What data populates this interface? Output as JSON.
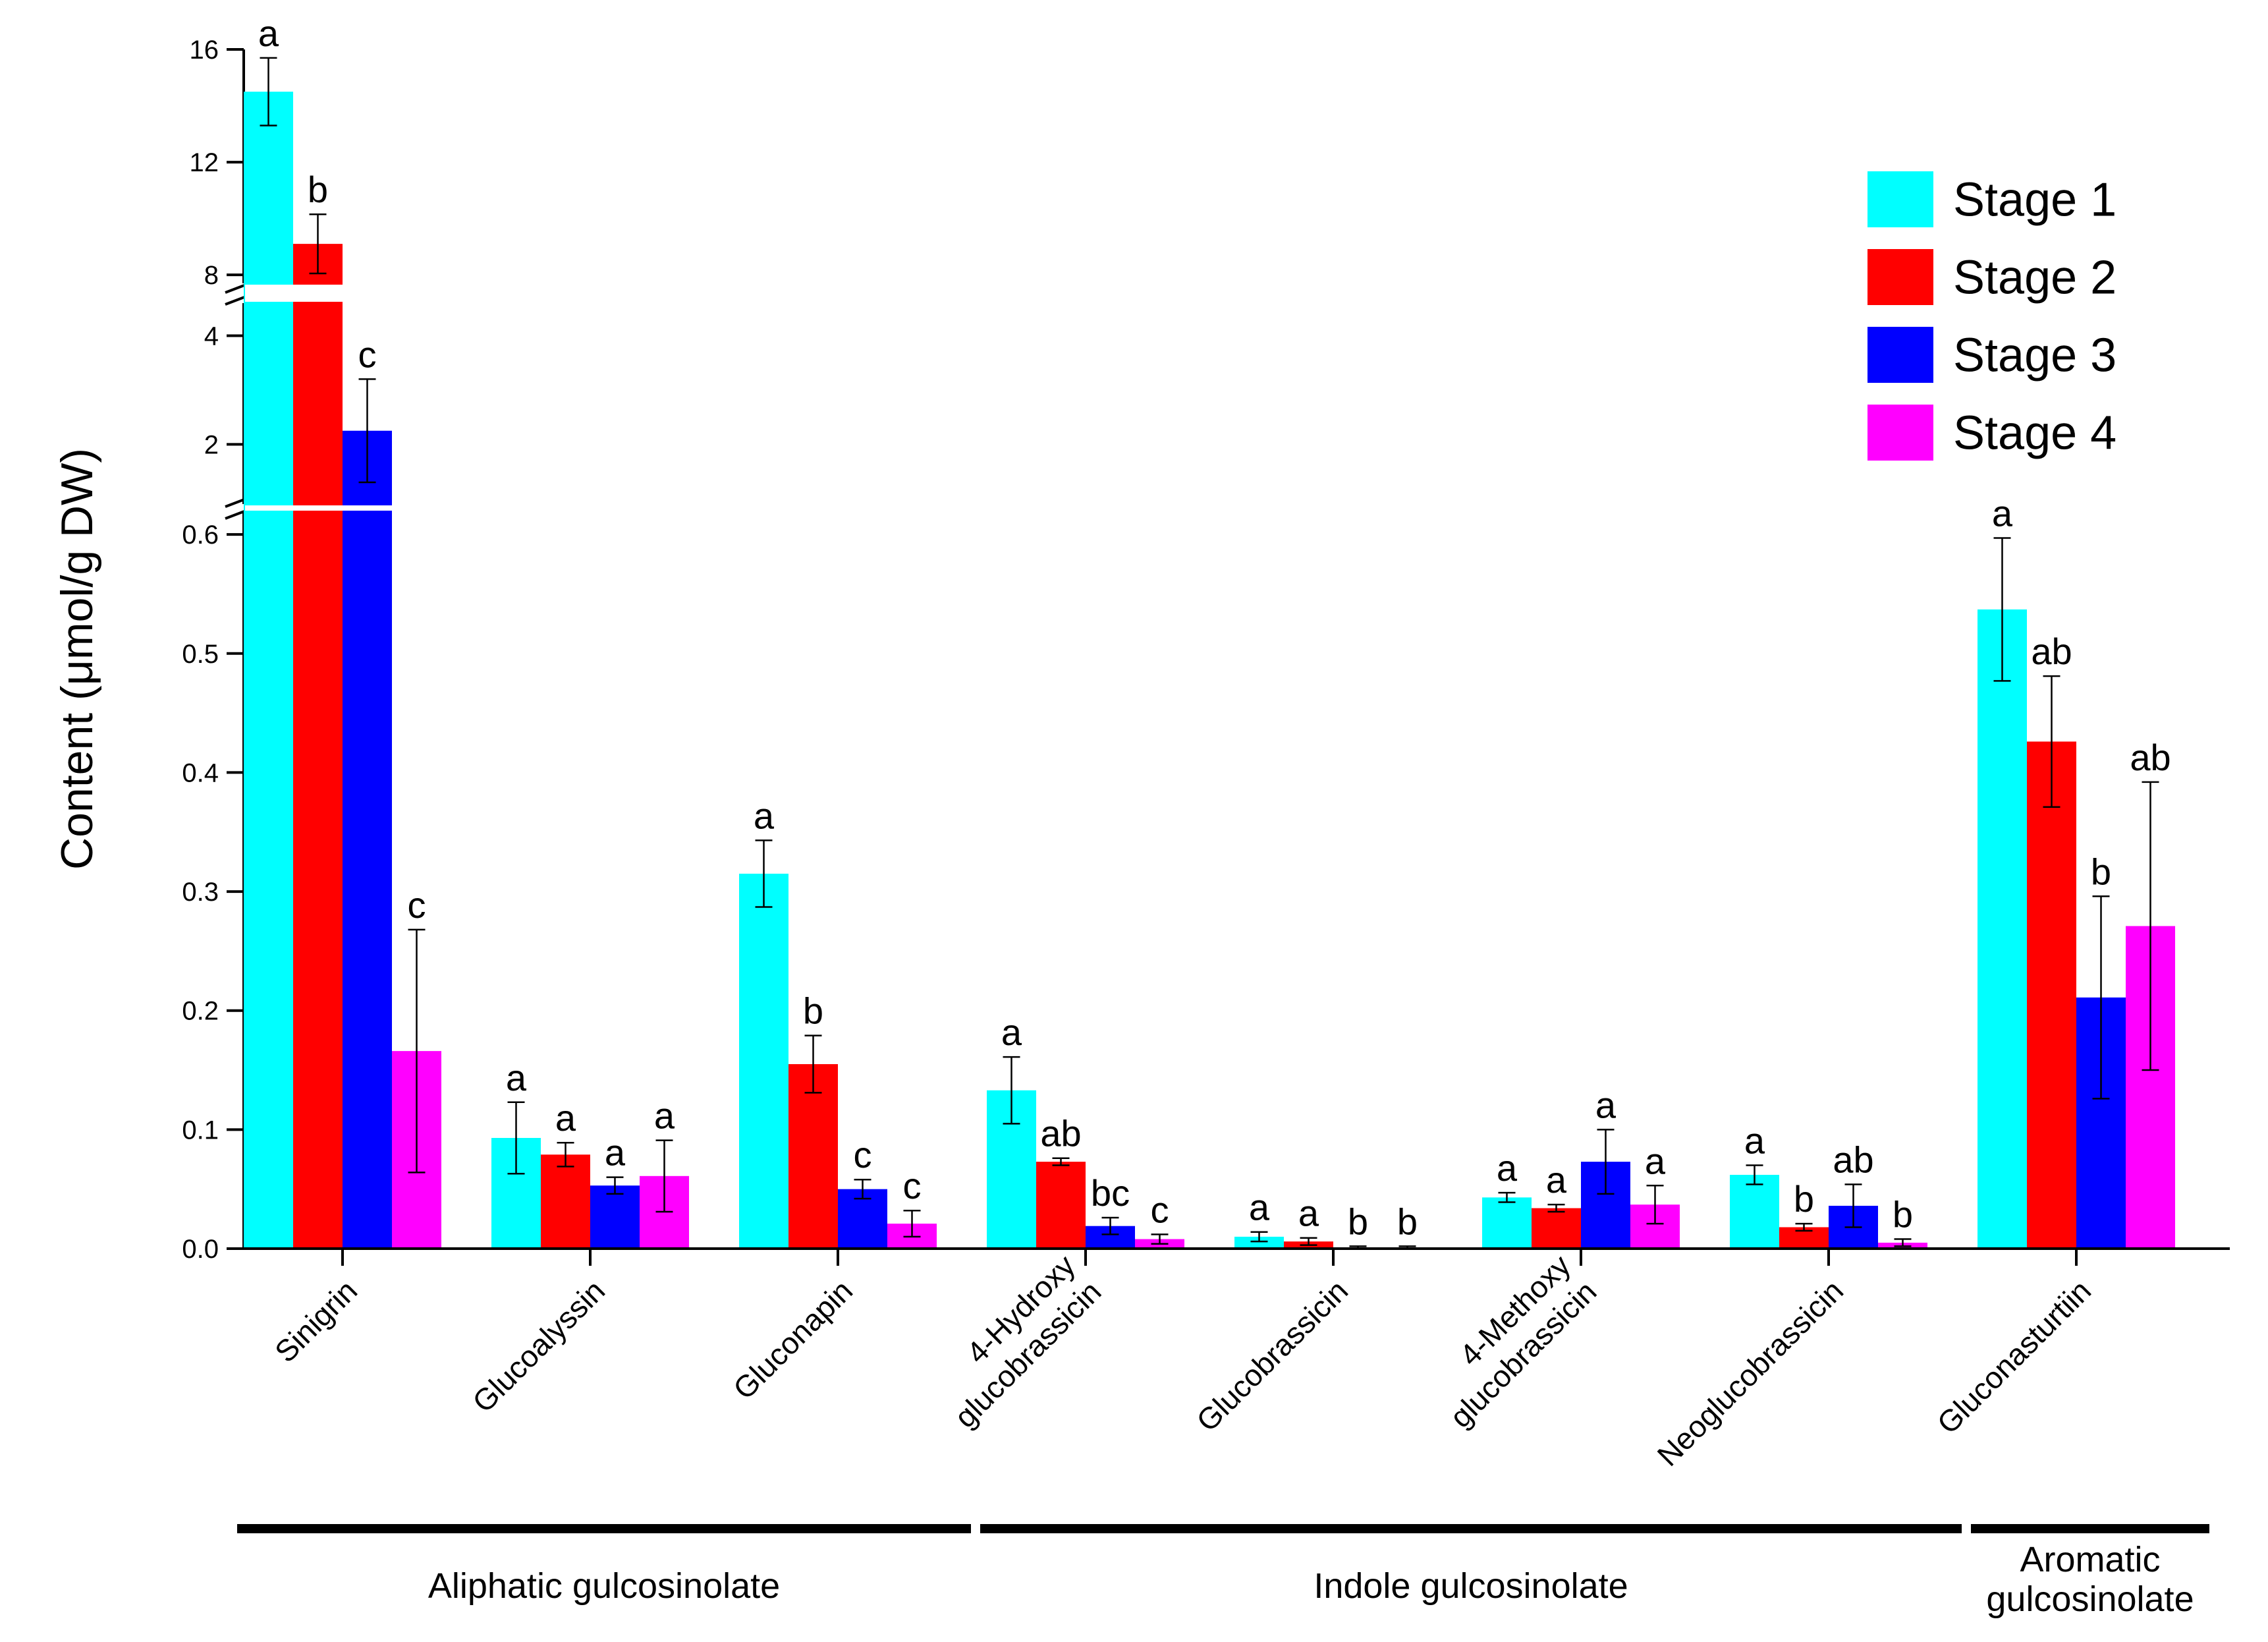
{
  "chart_data": {
    "type": "bar",
    "ylabel": "Content (μmol/g DW)",
    "axis_segments": [
      {
        "range": [
          0,
          0.62
        ],
        "ticks": [
          0.0,
          0.1,
          0.2,
          0.3,
          0.4,
          0.5,
          0.6
        ],
        "tick_labels": [
          "0.0",
          "0.1",
          "0.2",
          "0.3",
          "0.4",
          "0.5",
          "0.6"
        ]
      },
      {
        "range": [
          0.9,
          4.6
        ],
        "ticks": [
          2,
          4
        ],
        "tick_labels": [
          "2",
          "4"
        ]
      },
      {
        "range": [
          7.7,
          16
        ],
        "ticks": [
          8,
          12,
          16
        ],
        "tick_labels": [
          "8",
          "12",
          "16"
        ]
      }
    ],
    "categories": [
      {
        "label": "Sinigrin",
        "lines": [
          "Sinigrin"
        ]
      },
      {
        "label": "Glucoalyssin",
        "lines": [
          "Glucoalyssin"
        ]
      },
      {
        "label": "Gluconapin",
        "lines": [
          "Gluconapin"
        ]
      },
      {
        "label": "4-Hydroxy glucobrassicin",
        "lines": [
          "4-Hydroxy",
          "glucobrassicin"
        ]
      },
      {
        "label": "Glucobrassicin",
        "lines": [
          "Glucobrassicin"
        ]
      },
      {
        "label": "4-Methoxy glucobrassicin",
        "lines": [
          "4-Methoxy",
          "glucobrassicin"
        ]
      },
      {
        "label": "Neoglucobrassicin",
        "lines": [
          "Neoglucobrassicin"
        ]
      },
      {
        "label": "Gluconasturtiin",
        "lines": [
          "Gluconasturtiin"
        ]
      }
    ],
    "series": [
      {
        "name": "Stage 1",
        "color": "#00FFFF",
        "values": [
          14.5,
          0.093,
          0.315,
          0.133,
          0.01,
          0.043,
          0.062,
          0.537
        ],
        "errors": [
          1.2,
          0.03,
          0.028,
          0.028,
          0.004,
          0.004,
          0.008,
          0.06
        ],
        "letters": [
          "a",
          "a",
          "a",
          "a",
          "a",
          "a",
          "a",
          "a"
        ]
      },
      {
        "name": "Stage 2",
        "color": "#FF0000",
        "values": [
          9.1,
          0.079,
          0.155,
          0.073,
          0.006,
          0.034,
          0.018,
          0.426
        ],
        "errors": [
          1.05,
          0.01,
          0.024,
          0.003,
          0.003,
          0.003,
          0.003,
          0.055
        ],
        "letters": [
          "b",
          "a",
          "b",
          "ab",
          "a",
          "a",
          "b",
          "ab"
        ]
      },
      {
        "name": "Stage 3",
        "color": "#0000FF",
        "values": [
          2.25,
          0.053,
          0.05,
          0.019,
          0.001,
          0.073,
          0.036,
          0.211
        ],
        "errors": [
          0.95,
          0.007,
          0.008,
          0.007,
          0.001,
          0.027,
          0.018,
          0.085
        ],
        "letters": [
          "c",
          "a",
          "c",
          "bc",
          "b",
          "a",
          "ab",
          "b"
        ]
      },
      {
        "name": "Stage 4",
        "color": "#FF00FF",
        "values": [
          0.166,
          0.061,
          0.021,
          0.008,
          0.001,
          0.037,
          0.005,
          0.271
        ],
        "errors": [
          0.102,
          0.03,
          0.011,
          0.004,
          0.001,
          0.016,
          0.003,
          0.121
        ],
        "letters": [
          "c",
          "a",
          "c",
          "c",
          "b",
          "a",
          "b",
          "ab"
        ]
      }
    ],
    "groups": [
      {
        "label": "Aliphatic gulcosinolate",
        "lines": [
          "Aliphatic gulcosinolate"
        ],
        "from": 0,
        "to": 2
      },
      {
        "label": "Indole gulcosinolate",
        "lines": [
          "Indole gulcosinolate"
        ],
        "from": 3,
        "to": 6
      },
      {
        "label": "Aromatic gulcosinolate",
        "lines": [
          "Aromatic",
          "gulcosinolate"
        ],
        "from": 7,
        "to": 7
      }
    ],
    "legend_position": "top-right",
    "grid": false
  }
}
